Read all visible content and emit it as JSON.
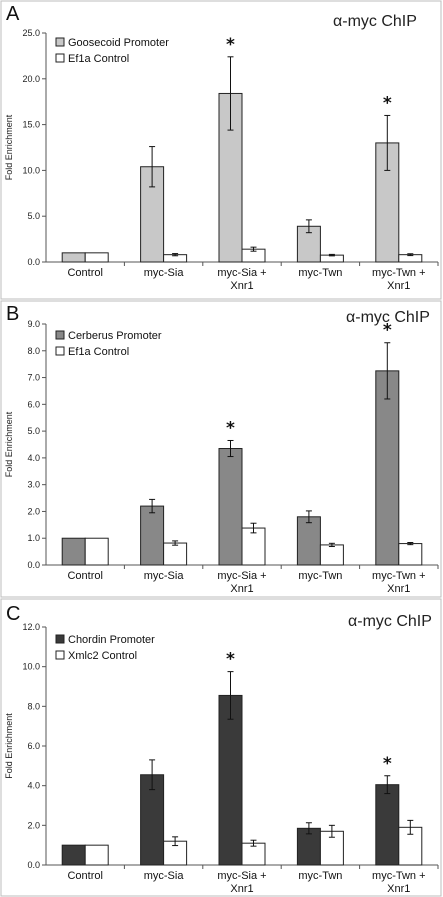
{
  "chart_data": [
    {
      "type": "bar",
      "panel_label": "A",
      "title": "α-myc ChIP",
      "ylabel": "Fold Enrichment",
      "xlabel": "",
      "ylim": [
        0,
        25
      ],
      "y_ticks": [
        "0.0",
        "5.0",
        "10.0",
        "15.0",
        "20.0",
        "25.0"
      ],
      "grid": false,
      "legend_position": "top-left",
      "categories": [
        "Control",
        "myc-Sia",
        "myc-Sia +\nXnr1",
        "myc-Twn",
        "myc-Twn +\nXnr1"
      ],
      "series": [
        {
          "name": "Goosecoid Promoter",
          "color": "#c8c8c8",
          "values": [
            1.0,
            10.4,
            18.4,
            3.9,
            13.0
          ],
          "errors": [
            0,
            2.2,
            4.0,
            0.7,
            3.0
          ]
        },
        {
          "name": "Ef1a Control",
          "color": "#ffffff",
          "values": [
            1.0,
            0.8,
            1.4,
            0.75,
            0.8
          ],
          "errors": [
            0,
            0.12,
            0.22,
            0.08,
            0.1
          ]
        }
      ],
      "significance": [
        "",
        "",
        "*",
        "",
        "*"
      ]
    },
    {
      "type": "bar",
      "panel_label": "B",
      "title": "α-myc ChIP",
      "ylabel": "Fold Enrichment",
      "xlabel": "",
      "ylim": [
        0,
        9
      ],
      "y_ticks": [
        "0.0",
        "1.0",
        "2.0",
        "3.0",
        "4.0",
        "5.0",
        "6.0",
        "7.0",
        "8.0",
        "9.0"
      ],
      "grid": false,
      "legend_position": "top-left",
      "categories": [
        "Control",
        "myc-Sia",
        "myc-Sia +\nXnr1",
        "myc-Twn",
        "myc-Twn +\nXnr1"
      ],
      "series": [
        {
          "name": "Cerberus Promoter",
          "color": "#888888",
          "values": [
            1.0,
            2.2,
            4.35,
            1.8,
            7.25
          ],
          "errors": [
            0,
            0.25,
            0.3,
            0.22,
            1.05
          ]
        },
        {
          "name": "Ef1a Control",
          "color": "#ffffff",
          "values": [
            1.0,
            0.82,
            1.38,
            0.75,
            0.8
          ],
          "errors": [
            0,
            0.08,
            0.18,
            0.06,
            0.04
          ]
        }
      ],
      "significance": [
        "",
        "",
        "*",
        "",
        "*"
      ]
    },
    {
      "type": "bar",
      "panel_label": "C",
      "title": "α-myc ChIP",
      "ylabel": "Fold Enrichment",
      "xlabel": "",
      "ylim": [
        0,
        12
      ],
      "y_ticks": [
        "0.0",
        "2.0",
        "4.0",
        "6.0",
        "8.0",
        "10.0",
        "12.0"
      ],
      "grid": false,
      "legend_position": "top-left",
      "categories": [
        "Control",
        "myc-Sia",
        "myc-Sia +\nXnr1",
        "myc-Twn",
        "myc-Twn +\nXnr1"
      ],
      "series": [
        {
          "name": "Chordin Promoter",
          "color": "#3a3a3a",
          "values": [
            1.0,
            4.55,
            8.55,
            1.85,
            4.05
          ],
          "errors": [
            0,
            0.75,
            1.2,
            0.28,
            0.45
          ]
        },
        {
          "name": "Xmlc2 Control",
          "color": "#ffffff",
          "values": [
            1.0,
            1.2,
            1.1,
            1.7,
            1.9
          ],
          "errors": [
            0,
            0.22,
            0.15,
            0.3,
            0.35
          ]
        }
      ],
      "significance": [
        "",
        "",
        "*",
        "",
        "*"
      ]
    }
  ]
}
